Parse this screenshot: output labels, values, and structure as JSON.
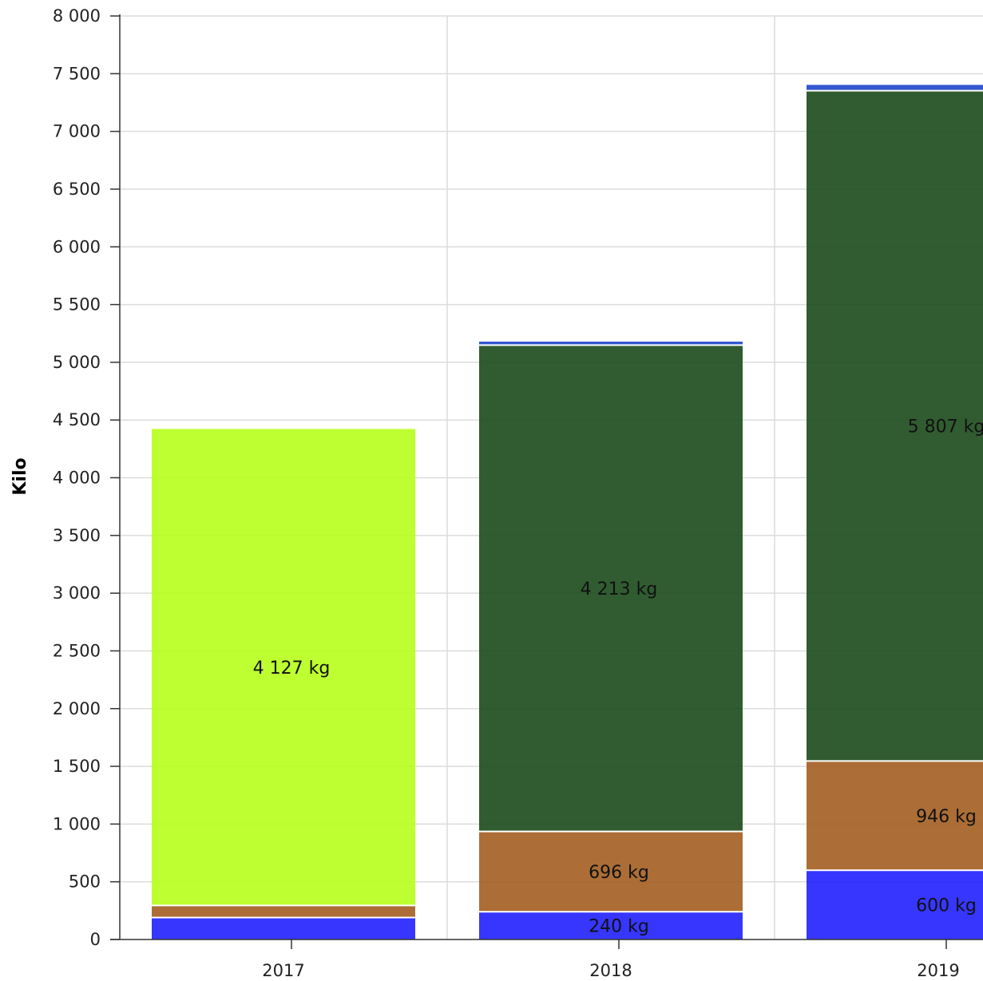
{
  "chart_data": {
    "type": "bar",
    "stacked": true,
    "title": "",
    "xlabel": "",
    "ylabel": "Kilo",
    "ylim": [
      0,
      8000
    ],
    "yticks": [
      0,
      500,
      1000,
      1500,
      2000,
      2500,
      3000,
      3500,
      4000,
      4500,
      5000,
      5500,
      6000,
      6500,
      7000,
      7500,
      8000
    ],
    "ytick_labels": [
      "0",
      "500",
      "1 000",
      "1 500",
      "2 000",
      "2 500",
      "3 000",
      "3 500",
      "4 000",
      "4 500",
      "5 000",
      "5 500",
      "6 000",
      "6 500",
      "7 000",
      "7 500",
      "8 000"
    ],
    "grid": true,
    "legend": "none",
    "categories": [
      "2017",
      "2018",
      "2019"
    ],
    "series": [
      {
        "color": "#2020ff",
        "values": [
          190,
          240,
          600
        ],
        "labels": [
          "",
          "240 kg",
          "600 kg"
        ]
      },
      {
        "color": "#a35e20",
        "values": [
          105,
          696,
          946
        ],
        "labels": [
          "",
          "696 kg",
          "946 kg"
        ]
      },
      {
        "color": "#b6ff1a",
        "values": [
          4127,
          0,
          0
        ],
        "labels": [
          "4 127 kg",
          "",
          ""
        ]
      },
      {
        "color": "#1b4a1b",
        "values": [
          0,
          4213,
          5807
        ],
        "labels": [
          "",
          "4 213 kg",
          "5 807 kg"
        ]
      },
      {
        "color": "#1f45cc",
        "values": [
          0,
          30,
          50
        ],
        "labels": [
          "",
          "",
          ""
        ]
      }
    ]
  }
}
